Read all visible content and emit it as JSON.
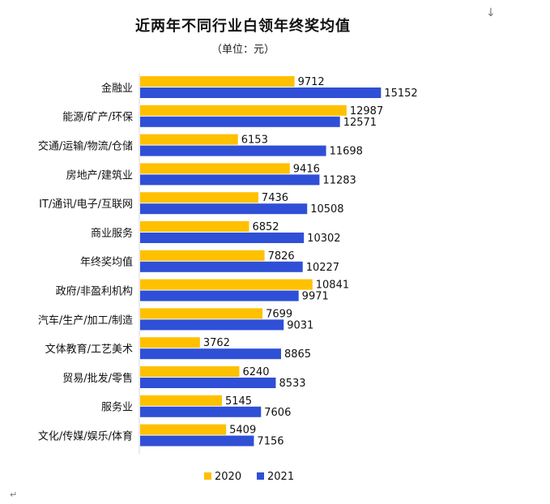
{
  "colors": {
    "s2020": "#FFC000",
    "s2021": "#2F4FD6",
    "axis": "#d9d9d9"
  },
  "glyphs": {
    "arrow": "↓",
    "return": "↵"
  },
  "chart_data": {
    "type": "bar",
    "orientation": "horizontal",
    "title": "近两年不同行业白领年终奖均值",
    "subtitle": "（单位：元）",
    "categories": [
      "金融业",
      "能源/矿产/环保",
      "交通/运输/物流/仓储",
      "房地产/建筑业",
      "IT/通讯/电子/互联网",
      "商业服务",
      "年终奖均值",
      "政府/非盈利机构",
      "汽车/生产/加工/制造",
      "文体教育/工艺美术",
      "贸易/批发/零售",
      "服务业",
      "文化/传媒/娱乐/体育"
    ],
    "series": [
      {
        "name": "2020",
        "color": "#FFC000",
        "values": [
          9712,
          12987,
          6153,
          9416,
          7436,
          6852,
          7826,
          10841,
          7699,
          3762,
          6240,
          5145,
          5409
        ]
      },
      {
        "name": "2021",
        "color": "#2F4FD6",
        "values": [
          15152,
          12571,
          11698,
          11283,
          10508,
          10302,
          10227,
          9971,
          9031,
          8865,
          8533,
          7606,
          7156
        ]
      }
    ],
    "xlim": [
      0,
      16000
    ],
    "grid": false,
    "data_labels": true,
    "legend_position": "bottom"
  }
}
